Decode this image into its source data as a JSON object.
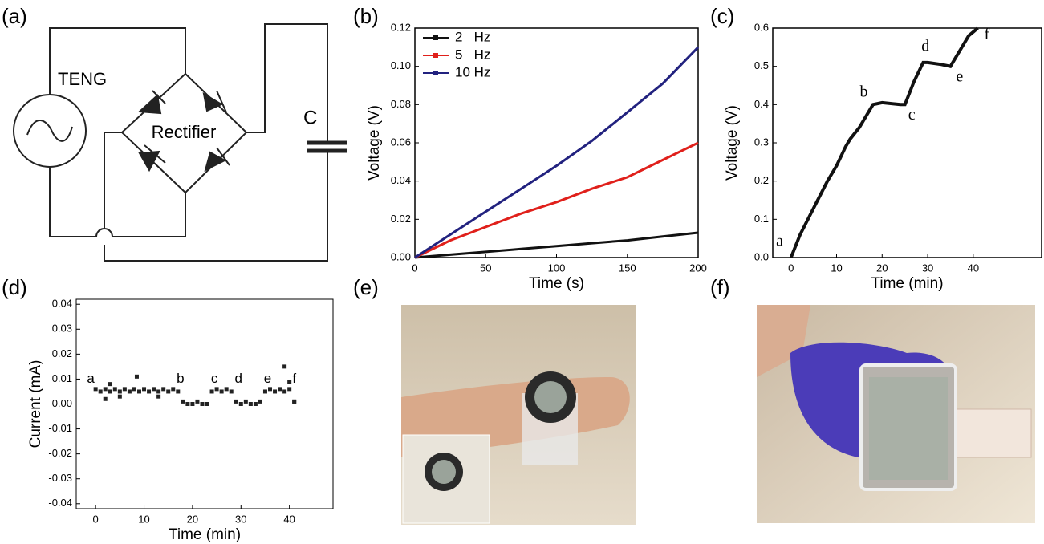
{
  "panel_labels": [
    "(a)",
    "(b)",
    "(c)",
    "(d)",
    "(e)",
    "(f)"
  ],
  "circuit": {
    "source_label": "TENG",
    "rectifier_label": "Rectifier",
    "capacitor_label": "C"
  },
  "chart_data": [
    {
      "type": "line",
      "x_label": "Time (s)",
      "y_label": "Voltage (V)",
      "legend": "upper left",
      "xlim": [
        0,
        200
      ],
      "xticks": [
        0,
        50,
        100,
        150,
        200
      ],
      "ylim": [
        0,
        0.12
      ],
      "yticks": [
        {
          "value": 0,
          "label": "0.00"
        },
        {
          "value": 0.02,
          "label": "0.02"
        },
        {
          "value": 0.04,
          "label": "0.04"
        },
        {
          "value": 0.06,
          "label": "0.06"
        },
        {
          "value": 0.08,
          "label": "0.08"
        },
        {
          "value": 0.1,
          "label": "0.10"
        },
        {
          "value": 0.12,
          "label": "0.12"
        }
      ],
      "x": [
        0,
        25,
        50,
        75,
        100,
        125,
        150,
        175,
        200
      ],
      "series": [
        {
          "name": "2   Hz",
          "color": "#111111",
          "values": [
            0,
            0.0015,
            0.003,
            0.0045,
            0.006,
            0.0075,
            0.009,
            0.011,
            0.013
          ]
        },
        {
          "name": "5   Hz",
          "color": "#e0201b",
          "values": [
            0,
            0.009,
            0.016,
            0.023,
            0.029,
            0.036,
            0.042,
            0.051,
            0.06
          ]
        },
        {
          "name": "10 Hz",
          "color": "#22227f",
          "values": [
            0,
            0.012,
            0.024,
            0.036,
            0.048,
            0.061,
            0.076,
            0.091,
            0.11
          ]
        }
      ]
    },
    {
      "type": "line",
      "x_label": "Time (min)",
      "y_label": "Voltage (V)",
      "xlim": [
        -4,
        55
      ],
      "xticks": [
        0,
        10,
        20,
        30,
        40
      ],
      "ylim": [
        0,
        0.6
      ],
      "yticks": [
        {
          "value": 0,
          "label": "0.0"
        },
        {
          "value": 0.1,
          "label": "0.1"
        },
        {
          "value": 0.2,
          "label": "0.2"
        },
        {
          "value": 0.3,
          "label": "0.3"
        },
        {
          "value": 0.4,
          "label": "0.4"
        },
        {
          "value": 0.5,
          "label": "0.5"
        },
        {
          "value": 0.6,
          "label": "0.6"
        }
      ],
      "x": [
        0,
        2,
        5,
        8,
        10,
        12,
        13,
        15,
        18,
        20,
        24,
        25,
        27,
        29,
        30,
        33,
        35,
        37,
        39,
        40,
        41
      ],
      "series": [
        {
          "color": "#111111",
          "values": [
            0,
            0.06,
            0.13,
            0.2,
            0.24,
            0.29,
            0.31,
            0.34,
            0.4,
            0.405,
            0.4,
            0.4,
            0.46,
            0.51,
            0.51,
            0.505,
            0.5,
            0.54,
            0.58,
            0.59,
            0.6
          ]
        }
      ],
      "annotations": [
        {
          "text": "a",
          "x": -2.5,
          "y": 0.04
        },
        {
          "text": "b",
          "x": 16,
          "y": 0.43
        },
        {
          "text": "c",
          "x": 26.5,
          "y": 0.37
        },
        {
          "text": "d",
          "x": 29.5,
          "y": 0.55
        },
        {
          "text": "e",
          "x": 37,
          "y": 0.47
        },
        {
          "text": "f",
          "x": 43,
          "y": 0.58
        }
      ]
    },
    {
      "type": "scatter",
      "x_label": "Time (min)",
      "y_label": "Current (mA)",
      "xlim": [
        -4,
        49
      ],
      "xticks": [
        0,
        10,
        20,
        30,
        40
      ],
      "ylim": [
        -0.042,
        0.042
      ],
      "yticks": [
        {
          "value": -0.04,
          "label": "-0.04"
        },
        {
          "value": -0.03,
          "label": "-0.03"
        },
        {
          "value": -0.02,
          "label": "-0.02"
        },
        {
          "value": -0.01,
          "label": "-0.01"
        },
        {
          "value": 0,
          "label": "0.00"
        },
        {
          "value": 0.01,
          "label": "0.01"
        },
        {
          "value": 0.02,
          "label": "0.02"
        },
        {
          "value": 0.03,
          "label": "0.03"
        },
        {
          "value": 0.04,
          "label": "0.04"
        }
      ],
      "series": [
        {
          "color": "#222222",
          "x": [
            0,
            1,
            2,
            3,
            4,
            5,
            6,
            7,
            8,
            9,
            10,
            11,
            12,
            13,
            14,
            15,
            16,
            17,
            18,
            19,
            20,
            21,
            22,
            23,
            24,
            25,
            26,
            27,
            28,
            29,
            30,
            31,
            32,
            33,
            34,
            35,
            36,
            37,
            38,
            39,
            40,
            41,
            2,
            5,
            8.5,
            13,
            39,
            40,
            41,
            3
          ],
          "values": [
            0.006,
            0.005,
            0.006,
            0.005,
            0.006,
            0.005,
            0.006,
            0.005,
            0.006,
            0.005,
            0.006,
            0.005,
            0.006,
            0.005,
            0.006,
            0.005,
            0.006,
            0.005,
            0.001,
            0,
            0,
            0.001,
            0,
            0,
            0.005,
            0.006,
            0.005,
            0.006,
            0.005,
            0.001,
            0,
            0.001,
            0,
            0,
            0.001,
            0.005,
            0.006,
            0.005,
            0.006,
            0.005,
            0.006,
            0.001,
            0.002,
            0.003,
            0.011,
            0.003,
            0.015,
            0.009,
            0.001,
            0.008
          ]
        }
      ],
      "annotations": [
        {
          "text": "a",
          "x": -1,
          "y": 0.01
        },
        {
          "text": "b",
          "x": 17.5,
          "y": 0.01
        },
        {
          "text": "c",
          "x": 24.5,
          "y": 0.01
        },
        {
          "text": "d",
          "x": 29.5,
          "y": 0.01
        },
        {
          "text": "e",
          "x": 35.5,
          "y": 0.01
        },
        {
          "text": "f",
          "x": 41,
          "y": 0.01
        }
      ]
    }
  ]
}
